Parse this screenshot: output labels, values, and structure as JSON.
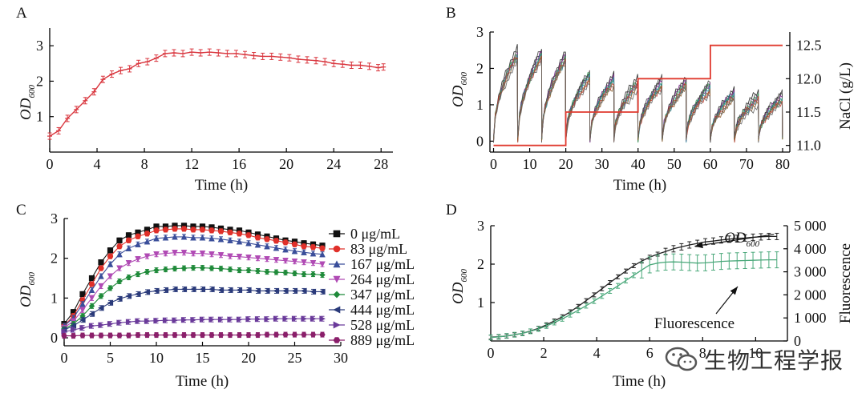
{
  "watermark": {
    "text": "生物工程学报",
    "icon": "wechat-icon"
  },
  "chart_data": [
    {
      "panel": "A",
      "type": "line",
      "xlabel": "Time (h)",
      "ylabel_main": "OD",
      "ylabel_sub": "600",
      "xlim": [
        0,
        29
      ],
      "ylim": [
        0,
        3.5
      ],
      "xticks": [
        0,
        4,
        8,
        12,
        16,
        20,
        24,
        28
      ],
      "yticks": [
        1,
        2,
        3
      ],
      "color": "#d9363e",
      "x": [
        0,
        0.75,
        1.5,
        2.25,
        3,
        3.75,
        4.5,
        5.25,
        6,
        6.75,
        7.5,
        8.25,
        9,
        9.75,
        10.5,
        11.25,
        12,
        12.75,
        13.5,
        14.25,
        15,
        15.75,
        16.5,
        17.25,
        18,
        18.75,
        19.5,
        20.25,
        21,
        21.75,
        22.5,
        23.25,
        24,
        24.75,
        25.5,
        26.25,
        27,
        27.75,
        28.2
      ],
      "y": [
        0.45,
        0.6,
        0.95,
        1.2,
        1.45,
        1.7,
        2.05,
        2.2,
        2.3,
        2.35,
        2.5,
        2.55,
        2.65,
        2.78,
        2.8,
        2.78,
        2.82,
        2.8,
        2.82,
        2.8,
        2.78,
        2.78,
        2.75,
        2.72,
        2.7,
        2.7,
        2.68,
        2.66,
        2.62,
        2.6,
        2.58,
        2.55,
        2.5,
        2.48,
        2.45,
        2.45,
        2.42,
        2.38,
        2.4
      ]
    },
    {
      "panel": "B",
      "type": "line",
      "xlabel": "Time (h)",
      "ylabel_main": "OD",
      "ylabel_sub": "600",
      "y2label": "NaCl (g/L)",
      "xlim": [
        -1,
        82
      ],
      "ylim": [
        -0.3,
        3
      ],
      "y2lim": [
        10.9,
        12.7
      ],
      "xticks": [
        0,
        10,
        20,
        30,
        40,
        50,
        60,
        70,
        80
      ],
      "yticks": [
        0,
        1,
        2,
        3
      ],
      "y2ticks": [
        "11.0",
        "11.5",
        "12.0",
        "12.5"
      ],
      "cycle_starts": [
        0,
        6.7,
        13.3,
        20,
        26.7,
        33.3,
        40,
        46.7,
        53.3,
        60,
        66.7,
        73.3
      ],
      "cycle_peaks": [
        2.6,
        2.6,
        2.5,
        2.0,
        1.9,
        1.8,
        1.8,
        1.8,
        1.7,
        1.5,
        1.4,
        1.4
      ],
      "cycle_start_od": 0.05,
      "nacl_steps": [
        {
          "x0": 0,
          "x1": 20,
          "v": 11.0
        },
        {
          "x0": 20,
          "x1": 40,
          "v": 11.5
        },
        {
          "x0": 40,
          "x1": 60,
          "v": 12.0
        },
        {
          "x0": 60,
          "x1": 80,
          "v": 12.5
        }
      ],
      "series_colors": [
        "#222222",
        "#444444",
        "#7a2a8a",
        "#3a9a5a",
        "#2a8a9a",
        "#c0392b",
        "#8a5a2a",
        "#666666"
      ],
      "nacl_color": "#e03a2f"
    },
    {
      "panel": "C",
      "type": "line",
      "xlabel": "Time (h)",
      "ylabel_main": "OD",
      "ylabel_sub": "600",
      "xlim": [
        0,
        30
      ],
      "ylim": [
        -0.2,
        3
      ],
      "xticks": [
        0,
        5,
        10,
        15,
        20,
        25,
        30
      ],
      "yticks": [
        0,
        1,
        2,
        3
      ],
      "legend_position": "right",
      "series": [
        {
          "name": "0 μg/mL",
          "marker": "square",
          "color": "#111111",
          "x": [
            0,
            1,
            2,
            3,
            4,
            5,
            6,
            7,
            8,
            9,
            10,
            11,
            12,
            13,
            14,
            15,
            16,
            17,
            18,
            19,
            20,
            21,
            22,
            23,
            24,
            25,
            26,
            27,
            28
          ],
          "y": [
            0.35,
            0.65,
            1.1,
            1.5,
            1.9,
            2.2,
            2.45,
            2.58,
            2.65,
            2.72,
            2.8,
            2.8,
            2.82,
            2.82,
            2.8,
            2.8,
            2.78,
            2.75,
            2.72,
            2.7,
            2.65,
            2.6,
            2.55,
            2.5,
            2.45,
            2.42,
            2.38,
            2.35,
            2.32
          ]
        },
        {
          "name": "83 μg/mL",
          "marker": "circle",
          "color": "#e0302a",
          "x": [
            0,
            1,
            2,
            3,
            4,
            5,
            6,
            7,
            8,
            9,
            10,
            11,
            12,
            13,
            14,
            15,
            16,
            17,
            18,
            19,
            20,
            21,
            22,
            23,
            24,
            25,
            26,
            27,
            28
          ],
          "y": [
            0.3,
            0.55,
            0.95,
            1.35,
            1.75,
            2.05,
            2.3,
            2.45,
            2.55,
            2.62,
            2.7,
            2.72,
            2.74,
            2.74,
            2.72,
            2.72,
            2.7,
            2.68,
            2.65,
            2.62,
            2.58,
            2.52,
            2.48,
            2.44,
            2.4,
            2.35,
            2.3,
            2.28,
            2.25
          ]
        },
        {
          "name": "167 μg/mL",
          "marker": "triangle-up",
          "color": "#3a4e9a",
          "x": [
            0,
            1,
            2,
            3,
            4,
            5,
            6,
            7,
            8,
            9,
            10,
            11,
            12,
            13,
            14,
            15,
            16,
            17,
            18,
            19,
            20,
            21,
            22,
            23,
            24,
            25,
            26,
            27,
            28
          ],
          "y": [
            0.3,
            0.5,
            0.85,
            1.2,
            1.55,
            1.85,
            2.1,
            2.25,
            2.35,
            2.42,
            2.5,
            2.52,
            2.54,
            2.54,
            2.52,
            2.52,
            2.5,
            2.48,
            2.45,
            2.42,
            2.38,
            2.34,
            2.3,
            2.26,
            2.22,
            2.18,
            2.15,
            2.12,
            2.1
          ]
        },
        {
          "name": "264 μg/mL",
          "marker": "triangle-down",
          "color": "#b04ab4",
          "x": [
            0,
            1,
            2,
            3,
            4,
            5,
            6,
            7,
            8,
            9,
            10,
            11,
            12,
            13,
            14,
            15,
            16,
            17,
            18,
            19,
            20,
            21,
            22,
            23,
            24,
            25,
            26,
            27,
            28
          ],
          "y": [
            0.25,
            0.42,
            0.7,
            1.0,
            1.3,
            1.55,
            1.75,
            1.88,
            1.98,
            2.05,
            2.1,
            2.12,
            2.14,
            2.14,
            2.12,
            2.12,
            2.1,
            2.08,
            2.05,
            2.04,
            2.02,
            2.0,
            1.98,
            1.96,
            1.94,
            1.92,
            1.9,
            1.88,
            1.85
          ]
        },
        {
          "name": "347 μg/mL",
          "marker": "diamond",
          "color": "#1f8a3a",
          "x": [
            0,
            1,
            2,
            3,
            4,
            5,
            6,
            7,
            8,
            9,
            10,
            11,
            12,
            13,
            14,
            15,
            16,
            17,
            18,
            19,
            20,
            21,
            22,
            23,
            24,
            25,
            26,
            27,
            28
          ],
          "y": [
            0.22,
            0.35,
            0.55,
            0.8,
            1.05,
            1.25,
            1.42,
            1.52,
            1.6,
            1.66,
            1.7,
            1.72,
            1.74,
            1.75,
            1.76,
            1.76,
            1.75,
            1.74,
            1.72,
            1.7,
            1.7,
            1.68,
            1.66,
            1.65,
            1.64,
            1.62,
            1.6,
            1.6,
            1.58
          ]
        },
        {
          "name": "444 μg/mL",
          "marker": "triangle-left",
          "color": "#2a3a7a",
          "x": [
            0,
            1,
            2,
            3,
            4,
            5,
            6,
            7,
            8,
            9,
            10,
            11,
            12,
            13,
            14,
            15,
            16,
            17,
            18,
            19,
            20,
            21,
            22,
            23,
            24,
            25,
            26,
            27,
            28
          ],
          "y": [
            0.2,
            0.3,
            0.45,
            0.6,
            0.75,
            0.88,
            0.98,
            1.05,
            1.1,
            1.15,
            1.18,
            1.2,
            1.22,
            1.22,
            1.22,
            1.22,
            1.22,
            1.2,
            1.2,
            1.2,
            1.2,
            1.18,
            1.18,
            1.18,
            1.18,
            1.18,
            1.18,
            1.16,
            1.16
          ]
        },
        {
          "name": "528 μg/mL",
          "marker": "triangle-right",
          "color": "#6a3a9a",
          "x": [
            0,
            1,
            2,
            3,
            4,
            5,
            6,
            7,
            8,
            9,
            10,
            11,
            12,
            13,
            14,
            15,
            16,
            17,
            18,
            19,
            20,
            21,
            22,
            23,
            24,
            25,
            26,
            27,
            28
          ],
          "y": [
            0.15,
            0.2,
            0.25,
            0.3,
            0.32,
            0.35,
            0.38,
            0.4,
            0.42,
            0.42,
            0.43,
            0.44,
            0.44,
            0.45,
            0.45,
            0.46,
            0.46,
            0.46,
            0.46,
            0.46,
            0.47,
            0.47,
            0.47,
            0.48,
            0.48,
            0.48,
            0.48,
            0.48,
            0.48
          ]
        },
        {
          "name": "889 μg/mL",
          "marker": "hexagon",
          "color": "#8a1f6a",
          "x": [
            0,
            1,
            2,
            3,
            4,
            5,
            6,
            7,
            8,
            9,
            10,
            11,
            12,
            13,
            14,
            15,
            16,
            17,
            18,
            19,
            20,
            21,
            22,
            23,
            24,
            25,
            26,
            27,
            28
          ],
          "y": [
            0.05,
            0.05,
            0.06,
            0.06,
            0.06,
            0.06,
            0.06,
            0.06,
            0.07,
            0.07,
            0.07,
            0.07,
            0.07,
            0.07,
            0.07,
            0.07,
            0.07,
            0.07,
            0.07,
            0.07,
            0.07,
            0.07,
            0.08,
            0.08,
            0.08,
            0.08,
            0.08,
            0.08,
            0.08
          ]
        }
      ]
    },
    {
      "panel": "D",
      "type": "line",
      "xlabel": "Time (h)",
      "ylabel_main": "OD",
      "ylabel_sub": "600",
      "y2label": "Fluorescence",
      "xlim": [
        0,
        11.2
      ],
      "ylim": [
        0,
        3
      ],
      "y2lim": [
        0,
        5000
      ],
      "xticks": [
        0,
        2,
        4,
        6,
        8,
        10
      ],
      "yticks": [
        1,
        2,
        3
      ],
      "y2ticks": [
        {
          "v": 0,
          "label": "0"
        },
        {
          "v": 1000,
          "label": "1 000"
        },
        {
          "v": 2000,
          "label": "2 000"
        },
        {
          "v": 3000,
          "label": "3 000"
        },
        {
          "v": 4000,
          "label": "4 000"
        },
        {
          "v": 5000,
          "label": "5 000"
        }
      ],
      "annotations": [
        {
          "label": "OD",
          "sub": "600",
          "ax": 5.0,
          "ay": 2.65,
          "tx": 7.7,
          "ty": 2.55
        },
        {
          "label": "Fluorescence",
          "sub": "",
          "ax": 6.8,
          "ay": 0.5,
          "tx": 8.8,
          "ty": 1.55
        }
      ],
      "series": [
        {
          "name": "OD600",
          "color": "#222222",
          "axis": "left",
          "x": [
            0,
            0.3,
            0.6,
            0.9,
            1.2,
            1.5,
            1.8,
            2.1,
            2.4,
            2.7,
            3.0,
            3.3,
            3.6,
            3.9,
            4.2,
            4.5,
            4.8,
            5.1,
            5.4,
            5.7,
            6.0,
            6.3,
            6.6,
            6.9,
            7.2,
            7.5,
            7.8,
            8.1,
            8.4,
            8.7,
            9.0,
            9.3,
            9.6,
            9.9,
            10.2,
            10.5,
            10.8
          ],
          "y": [
            0.1,
            0.11,
            0.13,
            0.16,
            0.2,
            0.26,
            0.33,
            0.42,
            0.52,
            0.63,
            0.76,
            0.9,
            1.05,
            1.2,
            1.36,
            1.52,
            1.67,
            1.82,
            1.96,
            2.08,
            2.18,
            2.26,
            2.33,
            2.4,
            2.45,
            2.5,
            2.54,
            2.58,
            2.6,
            2.63,
            2.65,
            2.67,
            2.68,
            2.7,
            2.71,
            2.72,
            2.72
          ]
        },
        {
          "name": "Fluorescence",
          "color": "#4aa87a",
          "axis": "right",
          "x": [
            0,
            0.3,
            0.6,
            0.9,
            1.2,
            1.5,
            1.8,
            2.1,
            2.4,
            2.7,
            3.0,
            3.3,
            3.6,
            3.9,
            4.2,
            4.5,
            4.8,
            5.1,
            5.4,
            5.7,
            6.0,
            6.3,
            6.6,
            6.9,
            7.2,
            7.5,
            7.8,
            8.1,
            8.4,
            8.7,
            9.0,
            9.3,
            9.6,
            9.9,
            10.2,
            10.5,
            10.8
          ],
          "y": [
            150,
            180,
            220,
            270,
            330,
            420,
            520,
            650,
            800,
            960,
            1140,
            1330,
            1530,
            1730,
            1950,
            2170,
            2390,
            2620,
            2850,
            3080,
            3300,
            3380,
            3420,
            3430,
            3420,
            3400,
            3380,
            3390,
            3420,
            3450,
            3470,
            3480,
            3490,
            3500,
            3510,
            3520,
            3520
          ]
        }
      ]
    }
  ]
}
